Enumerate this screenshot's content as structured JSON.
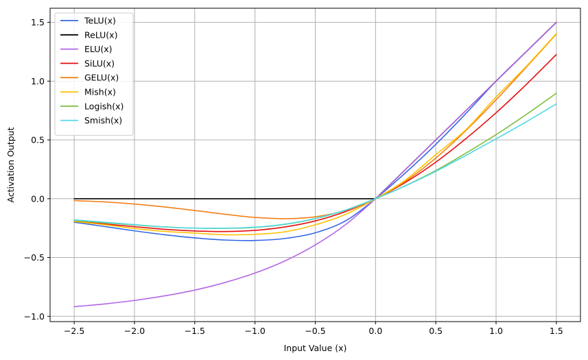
{
  "chart_data": {
    "type": "line",
    "title": "",
    "xlabel": "Input Value (x)",
    "ylabel": "Activation Output",
    "xlim": [
      -2.7,
      1.7
    ],
    "ylim": [
      -1.045,
      1.62
    ],
    "x_ticks": [
      -2.5,
      -2.0,
      -1.5,
      -1.0,
      -0.5,
      0.0,
      0.5,
      1.0,
      1.5
    ],
    "x_tick_labels": [
      "−2.5",
      "−2.0",
      "−1.5",
      "−1.0",
      "−0.5",
      "0.0",
      "0.5",
      "1.0",
      "1.5"
    ],
    "y_ticks": [
      -1.0,
      -0.5,
      0.0,
      0.5,
      1.0,
      1.5
    ],
    "y_tick_labels": [
      "−1.0",
      "−0.5",
      "0.0",
      "0.5",
      "1.0",
      "1.5"
    ],
    "grid": true,
    "legend_position": "top-left",
    "x": [
      -2.5,
      -2.25,
      -2.0,
      -1.75,
      -1.5,
      -1.25,
      -1.0,
      -0.75,
      -0.5,
      -0.25,
      0.0,
      0.25,
      0.5,
      0.75,
      1.0,
      1.25,
      1.5
    ],
    "series": [
      {
        "name": "TeLU(x)",
        "color": "#3366e6",
        "values": [
          -0.2,
          -0.236,
          -0.273,
          -0.306,
          -0.333,
          -0.351,
          -0.355,
          -0.338,
          -0.29,
          -0.189,
          0.0,
          0.222,
          0.462,
          0.725,
          1.0,
          1.25,
          1.5
        ]
      },
      {
        "name": "ReLU(x)",
        "color": "#000000",
        "values": [
          0.0,
          0.0,
          0.0,
          0.0,
          0.0,
          0.0,
          0.0,
          0.0,
          0.0,
          0.0,
          0.0,
          0.25,
          0.5,
          0.75,
          1.0,
          1.25,
          1.5
        ]
      },
      {
        "name": "ELU(x)",
        "color": "#b266e6",
        "values": [
          -0.918,
          -0.895,
          -0.865,
          -0.826,
          -0.777,
          -0.713,
          -0.632,
          -0.528,
          -0.393,
          -0.221,
          0.0,
          0.25,
          0.5,
          0.75,
          1.0,
          1.25,
          1.5
        ]
      },
      {
        "name": "SiLU(x)",
        "color": "#e60d0d",
        "values": [
          -0.19,
          -0.215,
          -0.238,
          -0.26,
          -0.274,
          -0.279,
          -0.269,
          -0.24,
          -0.189,
          -0.11,
          0.0,
          0.14,
          0.311,
          0.511,
          0.731,
          0.971,
          1.226
        ]
      },
      {
        "name": "GELU(x)",
        "color": "#f28018",
        "values": [
          -0.016,
          -0.027,
          -0.045,
          -0.07,
          -0.1,
          -0.132,
          -0.159,
          -0.17,
          -0.154,
          -0.1,
          0.0,
          0.15,
          0.346,
          0.58,
          0.841,
          1.118,
          1.4
        ]
      },
      {
        "name": "Mish(x)",
        "color": "#ffc000",
        "values": [
          -0.193,
          -0.221,
          -0.253,
          -0.278,
          -0.292,
          -0.306,
          -0.303,
          -0.281,
          -0.222,
          -0.133,
          0.0,
          0.16,
          0.375,
          0.587,
          0.865,
          1.125,
          1.404
        ]
      },
      {
        "name": "Logish(x)",
        "color": "#80c040",
        "values": [
          -0.185,
          -0.205,
          -0.223,
          -0.24,
          -0.25,
          -0.252,
          -0.244,
          -0.218,
          -0.17,
          -0.098,
          0.0,
          0.112,
          0.24,
          0.388,
          0.545,
          0.716,
          0.897
        ]
      },
      {
        "name": "Smish(x)",
        "color": "#4dd9e6",
        "values": [
          -0.18,
          -0.2,
          -0.22,
          -0.24,
          -0.25,
          -0.25,
          -0.242,
          -0.216,
          -0.168,
          -0.097,
          0.0,
          0.11,
          0.233,
          0.369,
          0.509,
          0.654,
          0.806
        ]
      }
    ]
  }
}
